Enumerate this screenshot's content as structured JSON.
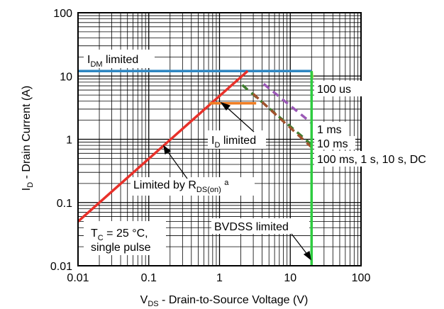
{
  "chart_data": {
    "type": "line",
    "title": "",
    "xlabel": {
      "main": "V",
      "sub": "DS",
      "rest": " - Drain-to-Source Voltage (V)"
    },
    "ylabel": {
      "main": "I",
      "sub": "D",
      "rest": " - Drain Current (A)"
    },
    "x_scale": "log",
    "y_scale": "log",
    "xlim": [
      0.01,
      100
    ],
    "ylim": [
      0.01,
      100
    ],
    "grid": true,
    "x_ticks": [
      "0.01",
      "0.1",
      "1",
      "10",
      "100"
    ],
    "y_ticks": [
      "0.01",
      "0.1",
      "1",
      "10",
      "100"
    ],
    "series": [
      {
        "key": "idm",
        "color": "#2e86c1",
        "dash": false,
        "points": [
          [
            0.01,
            12
          ],
          [
            20,
            12
          ]
        ]
      },
      {
        "key": "rds",
        "color": "#e8312a",
        "dash": false,
        "points": [
          [
            0.01,
            0.05
          ],
          [
            2.5,
            12
          ]
        ]
      },
      {
        "key": "id",
        "color": "#f07d22",
        "dash": false,
        "points": [
          [
            0.72,
            3.7
          ],
          [
            3.3,
            3.7
          ]
        ]
      },
      {
        "key": "us100",
        "color": "#c6e34a",
        "dash": true,
        "points": [
          [
            20,
            12
          ],
          [
            21,
            7.8
          ]
        ]
      },
      {
        "key": "ms1",
        "color": "#9b59b6",
        "dash": true,
        "points": [
          [
            4.2,
            7.5
          ],
          [
            20,
            1.8
          ]
        ]
      },
      {
        "key": "ms10",
        "color": "#3e7d2e",
        "dash": true,
        "points": [
          [
            2.1,
            7.2
          ],
          [
            20,
            0.82
          ]
        ]
      },
      {
        "key": "ms100dc",
        "color": "#a0522d",
        "dash": true,
        "points": [
          [
            3.0,
            5.2
          ],
          [
            20,
            0.75
          ]
        ]
      },
      {
        "key": "bvdss",
        "color": "#2ecc40",
        "dash": false,
        "points": [
          [
            20,
            0.01
          ],
          [
            20,
            12
          ]
        ]
      }
    ],
    "annotations": {
      "idm_limited": {
        "main": "I",
        "sub": "DM",
        "rest": " limited"
      },
      "id_limited": {
        "main": "I",
        "sub": "D",
        "rest": " limited"
      },
      "rds_limited": {
        "main": "Limited by R",
        "sub": "DS(on)",
        "rest": " ",
        "sup": "a"
      },
      "us100": "100 us",
      "ms1": "1 ms",
      "ms10": "10 ms",
      "ms100_dc": "100 ms, 1 s, 10 s, DC",
      "bvdss": "BVDSS limited",
      "conditions_line1": {
        "main": "T",
        "sub": "C",
        "rest": " = 25 °C,"
      },
      "conditions_line2": "single pulse"
    }
  }
}
